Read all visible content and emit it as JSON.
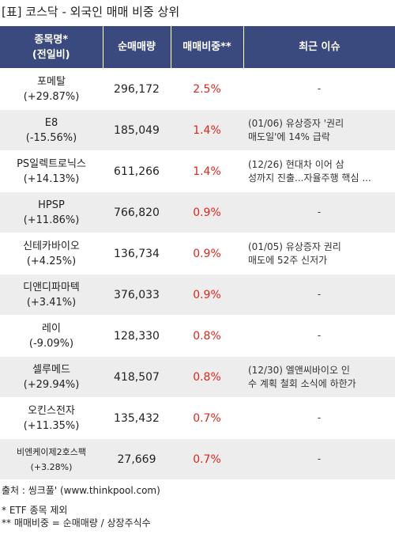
{
  "title": "[표] 코스닥 - 외국인 매매 비중 상위",
  "headers": {
    "name_line1": "종목명*",
    "name_line2": "(전일비)",
    "volume": "순매매량",
    "ratio": "매매비중**",
    "issue": "최근 이슈"
  },
  "rows": [
    {
      "name": "포메탈",
      "change": "(+29.87%)",
      "volume": "296,172",
      "ratio": "2.5%",
      "issue": [
        "-"
      ]
    },
    {
      "name": "E8",
      "change": "(-15.56%)",
      "volume": "185,049",
      "ratio": "1.4%",
      "issue": [
        "(01/06) 유상증자 '권리",
        "매도일'에 14% 급락"
      ]
    },
    {
      "name": "PS일렉트로닉스",
      "change": "(+14.13%)",
      "volume": "611,266",
      "ratio": "1.4%",
      "issue": [
        "(12/26) 현대차 이어 삼",
        "성까지 진출...자율주행 핵심 ..."
      ]
    },
    {
      "name": "HPSP",
      "change": "(+11.86%)",
      "volume": "766,820",
      "ratio": "0.9%",
      "issue": [
        "-"
      ]
    },
    {
      "name": "신테카바이오",
      "change": "(+4.25%)",
      "volume": "136,734",
      "ratio": "0.9%",
      "issue": [
        "(01/05) 유상증자 권리",
        "매도에 52주 신저가"
      ]
    },
    {
      "name": "디앤디파마텍",
      "change": "(+3.41%)",
      "volume": "376,033",
      "ratio": "0.9%",
      "issue": [
        "-"
      ]
    },
    {
      "name": "레이",
      "change": "(-9.09%)",
      "volume": "128,330",
      "ratio": "0.8%",
      "issue": [
        "-"
      ]
    },
    {
      "name": "셀루메드",
      "change": "(+29.94%)",
      "volume": "418,507",
      "ratio": "0.8%",
      "issue": [
        "(12/30) 엘앤씨바이오 인",
        "수 계획 철회 소식에 하한가"
      ]
    },
    {
      "name": "오킨스전자",
      "change": "(+11.35%)",
      "volume": "135,432",
      "ratio": "0.7%",
      "issue": [
        "-"
      ]
    },
    {
      "name": "비엔케이제2호스팩",
      "change": "(+3.28%)",
      "volume": "27,669",
      "ratio": "0.7%",
      "issue": [
        "-"
      ]
    }
  ],
  "footer": {
    "source": "출처 : 씽크풀' (www.thinkpool.com)",
    "note1": "* ETF 종목 제외",
    "note2": "** 매매비중 = 순매매량 / 상장주식수"
  },
  "colors": {
    "header_bg": "#3b4a7e",
    "ratio_text": "#e0251b",
    "stripe": "#ededed"
  }
}
